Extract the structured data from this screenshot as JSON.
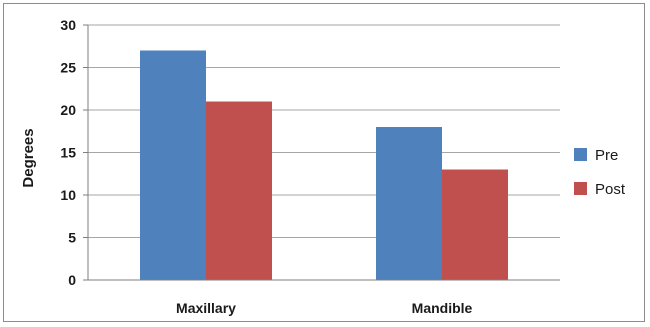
{
  "chart_data": {
    "type": "bar",
    "categories": [
      "Maxillary",
      "Mandible"
    ],
    "series": [
      {
        "name": "Pre",
        "values": [
          27,
          18
        ],
        "color": "#4f81bd"
      },
      {
        "name": "Post",
        "values": [
          21,
          13
        ],
        "color": "#c0504d"
      }
    ],
    "ylabel": "Degrees",
    "xlabel": "",
    "ylim": [
      0,
      30
    ],
    "yticks": [
      0,
      5,
      10,
      15,
      20,
      25,
      30
    ],
    "grid": true,
    "legend_position": "right"
  }
}
